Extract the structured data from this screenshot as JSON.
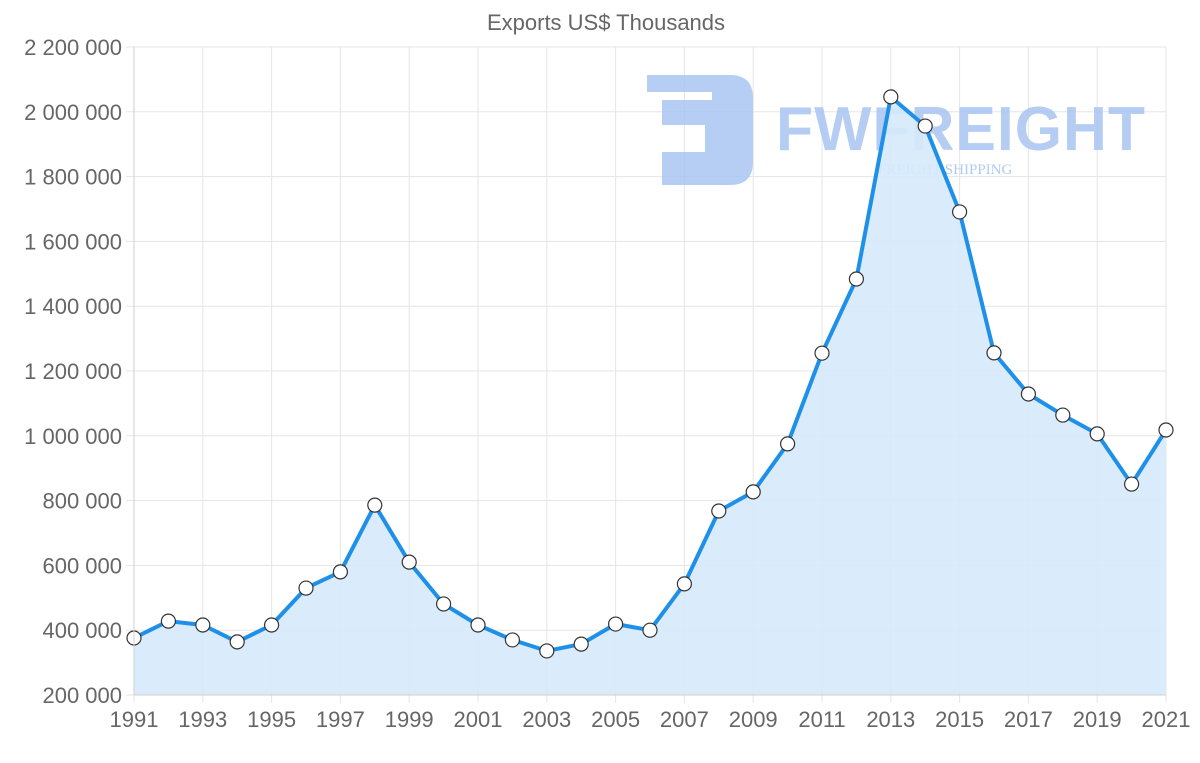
{
  "chart": {
    "title": "Exports US$ Thousands",
    "watermark": {
      "brand": "FWFREIGHT",
      "tagline": "FREIGHT SHIPPING",
      "color": "#a9c5f2"
    },
    "colors": {
      "line": "#1e90e8",
      "fill": "#d6eafc",
      "point_fill": "#ffffff",
      "point_stroke": "#333333",
      "grid": "#e5e5e5",
      "text": "#666666"
    }
  },
  "chart_data": {
    "type": "area",
    "title": "Exports US$ Thousands",
    "xlabel": "",
    "ylabel": "",
    "x": [
      1991,
      1992,
      1993,
      1994,
      1995,
      1996,
      1997,
      1998,
      1999,
      2000,
      2001,
      2002,
      2003,
      2004,
      2005,
      2006,
      2007,
      2008,
      2009,
      2010,
      2011,
      2012,
      2013,
      2014,
      2015,
      2016,
      2017,
      2018,
      2019,
      2020,
      2021
    ],
    "series": [
      {
        "name": "Exports US$ Thousands",
        "values": [
          376000,
          428000,
          416000,
          364000,
          416000,
          530000,
          580000,
          786000,
          610000,
          481000,
          416000,
          370000,
          336000,
          357000,
          419000,
          400000,
          543000,
          768000,
          827000,
          975000,
          1255000,
          1484000,
          2046000,
          1956000,
          1691000,
          1256000,
          1129000,
          1064000,
          1006000,
          851000,
          1018000
        ]
      }
    ],
    "x_tick_labels": [
      "1991",
      "1993",
      "1995",
      "1997",
      "1999",
      "2001",
      "2003",
      "2005",
      "2007",
      "2009",
      "2011",
      "2013",
      "2015",
      "2017",
      "2019",
      "2021"
    ],
    "y_tick_labels": [
      "2 200 000",
      "2 000 000",
      "1 800 000",
      "1 600 000",
      "1 400 000",
      "1 200 000",
      "1 000 000",
      "800 000",
      "600 000",
      "400 000",
      "200 000"
    ],
    "ylim": [
      200000,
      2200000
    ],
    "xlim": [
      1991,
      2021
    ],
    "grid": true,
    "legend": "none"
  }
}
